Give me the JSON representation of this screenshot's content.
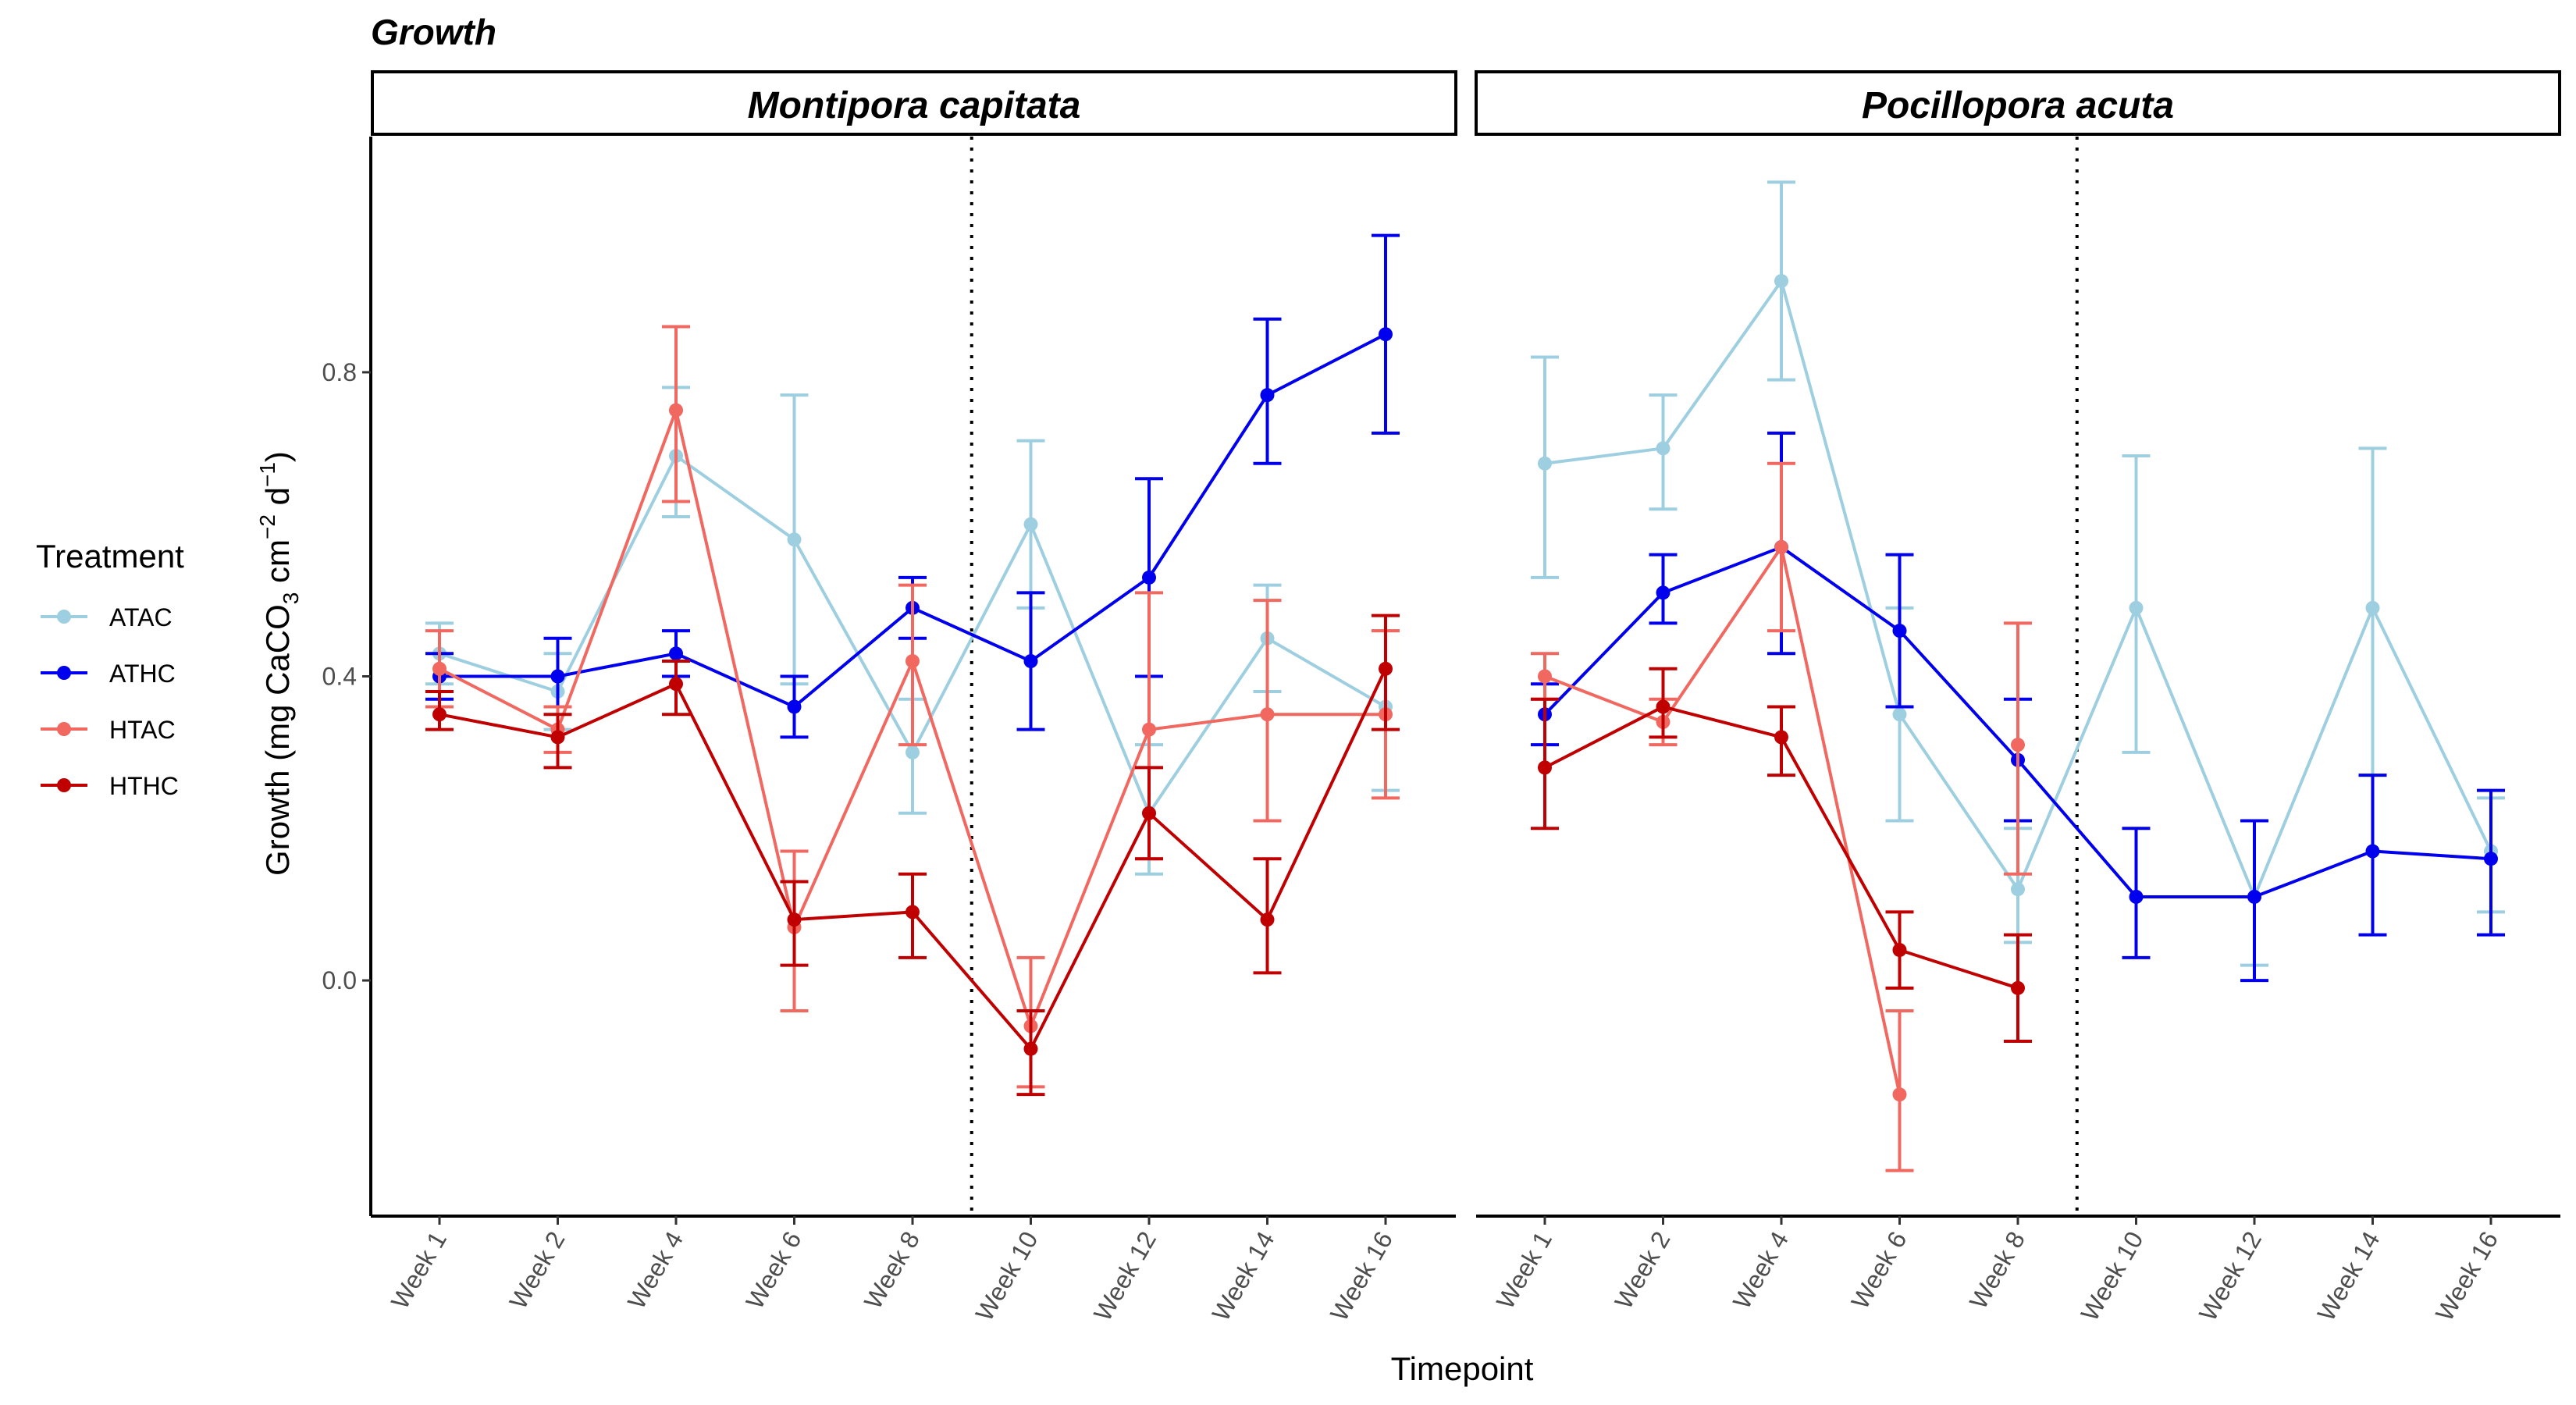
{
  "title": "Growth",
  "legend": {
    "title": "Treatment",
    "entries": [
      "ATAC",
      "ATHC",
      "HTAC",
      "HTHC"
    ]
  },
  "colors": {
    "ATAC": "#9ecfe0",
    "ATHC": "#0000ee",
    "HTAC": "#f06860",
    "HTHC": "#c00000"
  },
  "chart_data": [
    {
      "type": "line",
      "panel": "Montipora capitata",
      "title": "Growth",
      "xlabel": "Timepoint",
      "ylabel": "Growth (mg CaCO3 cm-2 d-1)",
      "ylim": [
        -0.31,
        1.11
      ],
      "yticks": [
        0.0,
        0.4,
        0.8
      ],
      "ytick_labels": [
        "0.0",
        "0.4",
        "0.8"
      ],
      "categories": [
        "Week 1",
        "Week 2",
        "Week 4",
        "Week 6",
        "Week 8",
        "Week 10",
        "Week 12",
        "Week 14",
        "Week 16"
      ],
      "reference_line_between": [
        "Week 8",
        "Week 10"
      ],
      "series": [
        {
          "name": "ATAC",
          "x": [
            "Week 1",
            "Week 2",
            "Week 4",
            "Week 6",
            "Week 8",
            "Week 10",
            "Week 12",
            "Week 14",
            "Week 16"
          ],
          "values": [
            0.43,
            0.38,
            0.69,
            0.58,
            0.3,
            0.6,
            0.22,
            0.45,
            0.36
          ],
          "lower": [
            0.39,
            0.33,
            0.61,
            0.39,
            0.22,
            0.49,
            0.14,
            0.38,
            0.25
          ],
          "upper": [
            0.47,
            0.43,
            0.78,
            0.77,
            0.37,
            0.71,
            0.31,
            0.52,
            0.46
          ]
        },
        {
          "name": "ATHC",
          "x": [
            "Week 1",
            "Week 2",
            "Week 4",
            "Week 6",
            "Week 8",
            "Week 10",
            "Week 12",
            "Week 14",
            "Week 16"
          ],
          "values": [
            0.4,
            0.4,
            0.43,
            0.36,
            0.49,
            0.42,
            0.53,
            0.77,
            0.85
          ],
          "lower": [
            0.37,
            0.36,
            0.4,
            0.32,
            0.45,
            0.33,
            0.4,
            0.68,
            0.72
          ],
          "upper": [
            0.43,
            0.45,
            0.46,
            0.4,
            0.53,
            0.51,
            0.66,
            0.87,
            0.98
          ]
        },
        {
          "name": "HTAC",
          "x": [
            "Week 1",
            "Week 2",
            "Week 4",
            "Week 6",
            "Week 8",
            "Week 10",
            "Week 12",
            "Week 14",
            "Week 16"
          ],
          "values": [
            0.41,
            0.33,
            0.75,
            0.07,
            0.42,
            -0.06,
            0.33,
            0.35,
            0.35
          ],
          "lower": [
            0.36,
            0.3,
            0.63,
            -0.04,
            0.31,
            -0.14,
            0.16,
            0.21,
            0.24
          ],
          "upper": [
            0.46,
            0.36,
            0.86,
            0.17,
            0.52,
            0.03,
            0.51,
            0.5,
            0.46
          ]
        },
        {
          "name": "HTHC",
          "x": [
            "Week 1",
            "Week 2",
            "Week 4",
            "Week 6",
            "Week 8",
            "Week 10",
            "Week 12",
            "Week 14",
            "Week 16"
          ],
          "values": [
            0.35,
            0.32,
            0.39,
            0.08,
            0.09,
            -0.09,
            0.22,
            0.08,
            0.41
          ],
          "lower": [
            0.33,
            0.28,
            0.35,
            0.02,
            0.03,
            -0.15,
            0.16,
            0.01,
            0.33
          ],
          "upper": [
            0.38,
            0.35,
            0.42,
            0.13,
            0.14,
            -0.04,
            0.28,
            0.16,
            0.48
          ]
        }
      ]
    },
    {
      "type": "line",
      "panel": "Pocillopora acuta",
      "title": "Growth",
      "xlabel": "Timepoint",
      "ylabel": "Growth (mg CaCO3 cm-2 d-1)",
      "ylim": [
        -0.31,
        1.11
      ],
      "yticks": [
        0.0,
        0.4,
        0.8
      ],
      "categories": [
        "Week 1",
        "Week 2",
        "Week 4",
        "Week 6",
        "Week 8",
        "Week 10",
        "Week 12",
        "Week 14",
        "Week 16"
      ],
      "reference_line_between": [
        "Week 8",
        "Week 10"
      ],
      "series": [
        {
          "name": "ATAC",
          "x": [
            "Week 1",
            "Week 2",
            "Week 4",
            "Week 6",
            "Week 8",
            "Week 10",
            "Week 12",
            "Week 14",
            "Week 16"
          ],
          "values": [
            0.68,
            0.7,
            0.92,
            0.35,
            0.12,
            0.49,
            0.11,
            0.49,
            0.17
          ],
          "lower": [
            0.53,
            0.62,
            0.79,
            0.21,
            0.05,
            0.3,
            0.02,
            0.27,
            0.09
          ],
          "upper": [
            0.82,
            0.77,
            1.05,
            0.49,
            0.2,
            0.69,
            0.21,
            0.7,
            0.24
          ]
        },
        {
          "name": "ATHC",
          "x": [
            "Week 1",
            "Week 2",
            "Week 4",
            "Week 6",
            "Week 8",
            "Week 10",
            "Week 12",
            "Week 14",
            "Week 16"
          ],
          "values": [
            0.35,
            0.51,
            0.57,
            0.46,
            0.29,
            0.11,
            0.11,
            0.17,
            0.16
          ],
          "lower": [
            0.31,
            0.47,
            0.43,
            0.36,
            0.21,
            0.03,
            0.0,
            0.06,
            0.06
          ],
          "upper": [
            0.39,
            0.56,
            0.72,
            0.56,
            0.37,
            0.2,
            0.21,
            0.27,
            0.25
          ]
        },
        {
          "name": "HTAC",
          "x": [
            "Week 1",
            "Week 2",
            "Week 4",
            "Week 6"
          ],
          "values": [
            0.4,
            0.34,
            0.57,
            -0.15
          ],
          "lower": [
            0.37,
            0.31,
            0.46,
            -0.25
          ],
          "upper": [
            0.43,
            0.37,
            0.68,
            -0.04
          ]
        },
        {
          "name": "HTAC",
          "x": [
            "Week 8"
          ],
          "values": [
            0.31
          ],
          "lower": [
            0.14
          ],
          "upper": [
            0.47
          ]
        },
        {
          "name": "HTHC",
          "x": [
            "Week 1",
            "Week 2",
            "Week 4",
            "Week 6",
            "Week 8"
          ],
          "values": [
            0.28,
            0.36,
            0.32,
            0.04,
            -0.01
          ],
          "lower": [
            0.2,
            0.32,
            0.27,
            -0.01,
            -0.08
          ],
          "upper": [
            0.37,
            0.41,
            0.36,
            0.09,
            0.06
          ]
        }
      ]
    }
  ]
}
